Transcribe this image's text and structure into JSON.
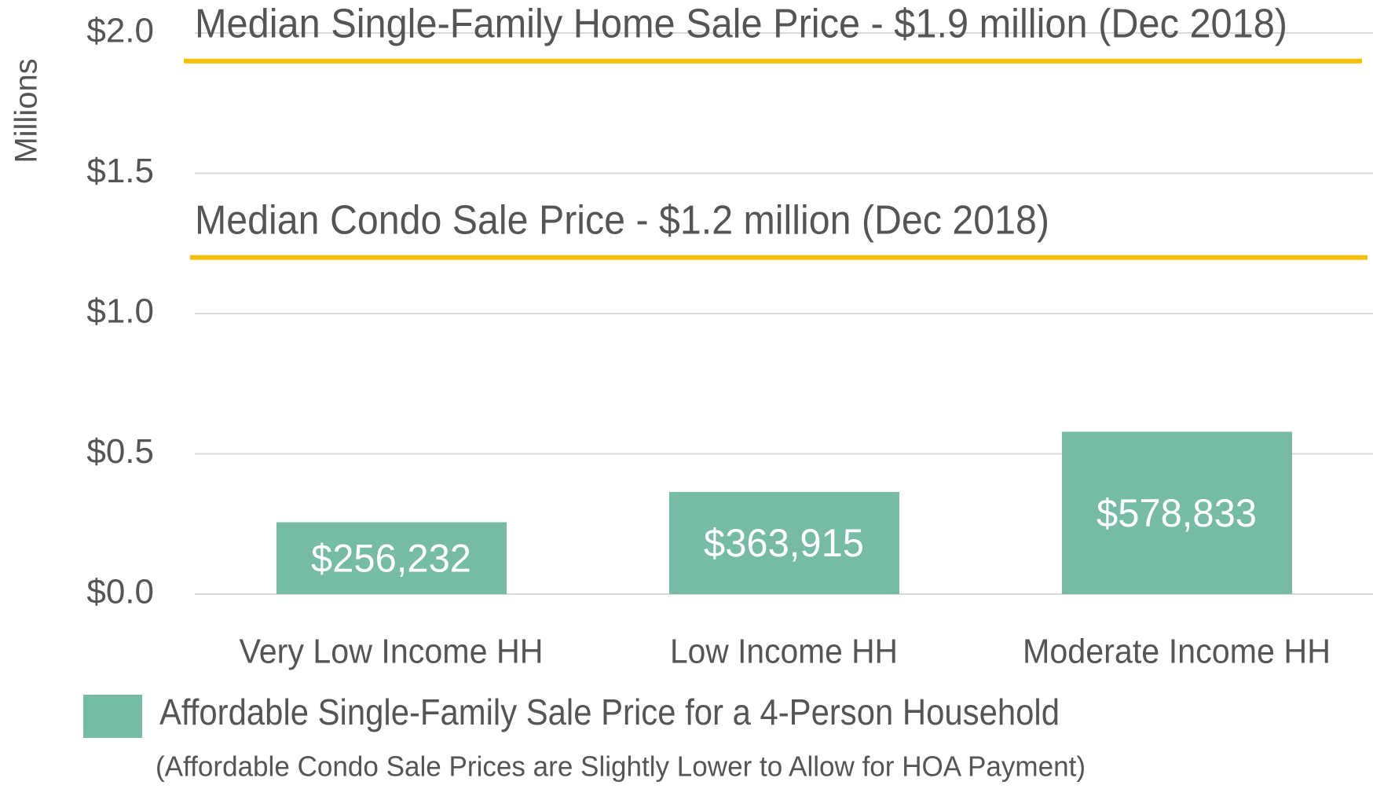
{
  "chart_data": {
    "type": "bar",
    "y_axis_label": "Millions",
    "categories": [
      "Very Low Income HH",
      "Low Income HH",
      "Moderate Income HH"
    ],
    "series": [
      {
        "name": "Affordable Single-Family Sale Price for a 4-Person Household",
        "color": "#76bca5",
        "values": [
          0.256232,
          0.363915,
          0.578833
        ],
        "value_labels": [
          "$256,232",
          "$363,915",
          "$578,833"
        ]
      }
    ],
    "ylim": [
      0,
      2.0
    ],
    "yticks": [
      {
        "value": 0,
        "label": "$0.0"
      },
      {
        "value": 0.5,
        "label": "$0.5"
      },
      {
        "value": 1.0,
        "label": "$1.0"
      },
      {
        "value": 1.5,
        "label": "$1.5"
      },
      {
        "value": 2.0,
        "label": "$2.0"
      }
    ],
    "grid": true,
    "reference_lines": [
      {
        "label": "Median Single-Family Home Sale Price - $1.9 million (Dec 2018)",
        "value": 1.9,
        "color": "#f5c000"
      },
      {
        "label": "Median Condo Sale Price - $1.2 million (Dec 2018)",
        "value": 1.2,
        "color": "#f5c000"
      }
    ],
    "legend": "bottom-left",
    "note": "(Affordable Condo Sale Prices are Slightly Lower to Allow for HOA Payment)"
  }
}
